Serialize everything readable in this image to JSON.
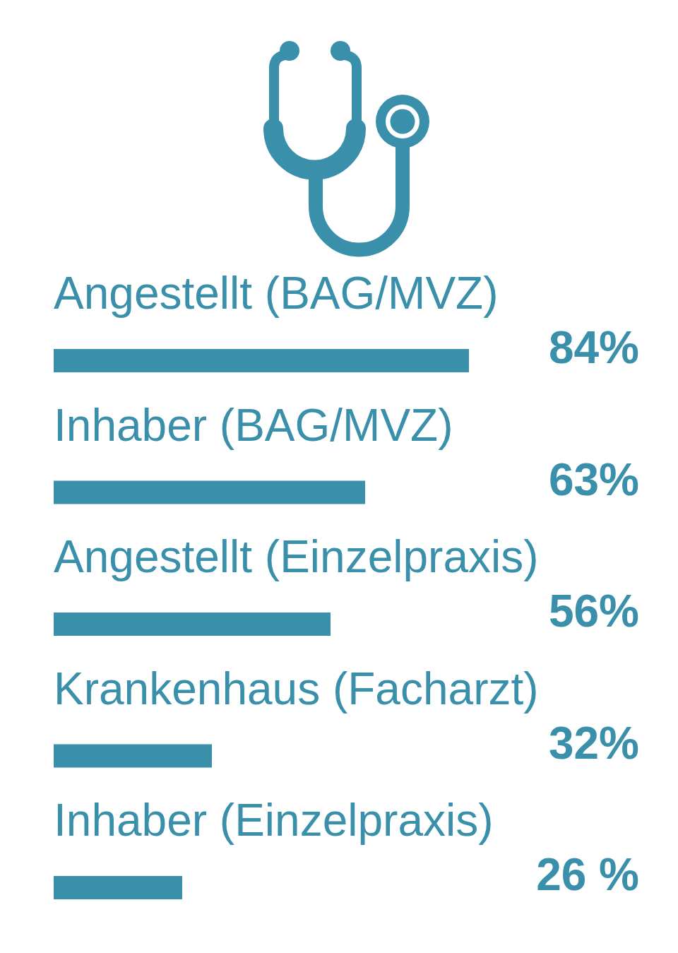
{
  "chart_data": {
    "type": "bar",
    "orientation": "horizontal",
    "categories": [
      "Angestellt (BAG/MVZ)",
      "Inhaber (BAG/MVZ)",
      "Angestellt (Einzelpraxis)",
      "Krankenhaus (Facharzt)",
      "Inhaber (Einzelpraxis)"
    ],
    "values": [
      84,
      63,
      56,
      32,
      26
    ],
    "value_labels": [
      "84%",
      "63%",
      "56%",
      "32%",
      "26 %"
    ],
    "color": "#3a90ab"
  }
}
